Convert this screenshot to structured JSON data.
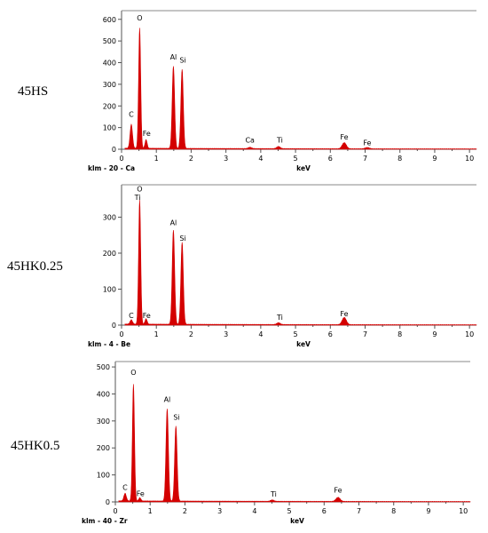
{
  "chart_data": [
    {
      "type": "line",
      "panel_label": "45HS",
      "footer_left": "klm - 20 - Ca",
      "xlabel": "keV",
      "ylabel": "",
      "xlim": [
        0,
        10.2
      ],
      "ylim": [
        0,
        640
      ],
      "xticks": [
        0,
        1,
        2,
        3,
        4,
        5,
        6,
        7,
        8,
        9,
        10
      ],
      "yticks": [
        0,
        100,
        200,
        300,
        400,
        500,
        600
      ],
      "color": "#d40000",
      "peaks": [
        {
          "e": 0.28,
          "h": 110,
          "w": 0.035
        },
        {
          "e": 0.52,
          "h": 555,
          "w": 0.03
        },
        {
          "e": 0.705,
          "h": 40,
          "w": 0.03
        },
        {
          "e": 1.49,
          "h": 380,
          "w": 0.035
        },
        {
          "e": 1.74,
          "h": 365,
          "w": 0.035
        },
        {
          "e": 3.69,
          "h": 6,
          "w": 0.05
        },
        {
          "e": 4.51,
          "h": 10,
          "w": 0.05
        },
        {
          "e": 6.4,
          "h": 28,
          "w": 0.06
        },
        {
          "e": 7.06,
          "h": 6,
          "w": 0.06
        }
      ],
      "labels": [
        {
          "text": "C",
          "e": 0.28,
          "v": 150
        },
        {
          "text": "O",
          "e": 0.52,
          "v": 595
        },
        {
          "text": "Fe",
          "e": 0.72,
          "v": 62
        },
        {
          "text": "Al",
          "e": 1.49,
          "v": 415
        },
        {
          "text": "Si",
          "e": 1.76,
          "v": 400
        },
        {
          "text": "Ca",
          "e": 3.69,
          "v": 30
        },
        {
          "text": "Ti",
          "e": 4.55,
          "v": 30
        },
        {
          "text": "Fe",
          "e": 6.4,
          "v": 45
        },
        {
          "text": "Fe",
          "e": 7.06,
          "v": 18
        }
      ]
    },
    {
      "type": "line",
      "panel_label": "45HK0.25",
      "footer_left": "klm - 4 - Be",
      "xlabel": "keV",
      "ylabel": "",
      "xlim": [
        0,
        10.2
      ],
      "ylim": [
        0,
        390
      ],
      "xticks": [
        0,
        1,
        2,
        3,
        4,
        5,
        6,
        7,
        8,
        9,
        10
      ],
      "yticks": [
        0,
        100,
        200,
        300
      ],
      "color": "#d40000",
      "peaks": [
        {
          "e": 0.28,
          "h": 12,
          "w": 0.035
        },
        {
          "e": 0.52,
          "h": 345,
          "w": 0.03
        },
        {
          "e": 0.705,
          "h": 15,
          "w": 0.03
        },
        {
          "e": 1.49,
          "h": 262,
          "w": 0.035
        },
        {
          "e": 1.74,
          "h": 228,
          "w": 0.035
        },
        {
          "e": 4.51,
          "h": 5,
          "w": 0.05
        },
        {
          "e": 6.4,
          "h": 20,
          "w": 0.06
        }
      ],
      "labels": [
        {
          "text": "C",
          "e": 0.28,
          "v": 20
        },
        {
          "text": "O",
          "e": 0.52,
          "v": 372
        },
        {
          "text": "Ti",
          "e": 0.46,
          "v": 348
        },
        {
          "text": "Fe",
          "e": 0.72,
          "v": 20
        },
        {
          "text": "Al",
          "e": 1.49,
          "v": 278
        },
        {
          "text": "Si",
          "e": 1.76,
          "v": 235
        },
        {
          "text": "Ti",
          "e": 4.55,
          "v": 15
        },
        {
          "text": "Fe",
          "e": 6.4,
          "v": 25
        }
      ]
    },
    {
      "type": "line",
      "panel_label": "45HK0.5",
      "footer_left": "klm - 40 - Zr",
      "xlabel": "keV",
      "ylabel": "",
      "xlim": [
        0,
        10.2
      ],
      "ylim": [
        0,
        520
      ],
      "xticks": [
        0,
        1,
        2,
        3,
        4,
        5,
        6,
        7,
        8,
        9,
        10
      ],
      "yticks": [
        0,
        100,
        200,
        300,
        400,
        500
      ],
      "color": "#d40000",
      "peaks": [
        {
          "e": 0.28,
          "h": 28,
          "w": 0.035
        },
        {
          "e": 0.52,
          "h": 432,
          "w": 0.03
        },
        {
          "e": 0.705,
          "h": 12,
          "w": 0.03
        },
        {
          "e": 1.49,
          "h": 342,
          "w": 0.035
        },
        {
          "e": 1.74,
          "h": 278,
          "w": 0.035
        },
        {
          "e": 4.51,
          "h": 5,
          "w": 0.05
        },
        {
          "e": 6.4,
          "h": 15,
          "w": 0.06
        }
      ],
      "labels": [
        {
          "text": "C",
          "e": 0.28,
          "v": 45
        },
        {
          "text": "O",
          "e": 0.52,
          "v": 470
        },
        {
          "text": "Fe",
          "e": 0.72,
          "v": 22
        },
        {
          "text": "Al",
          "e": 1.49,
          "v": 370
        },
        {
          "text": "Si",
          "e": 1.76,
          "v": 305
        },
        {
          "text": "Ti",
          "e": 4.55,
          "v": 20
        },
        {
          "text": "Fe",
          "e": 6.4,
          "v": 35
        }
      ]
    }
  ]
}
